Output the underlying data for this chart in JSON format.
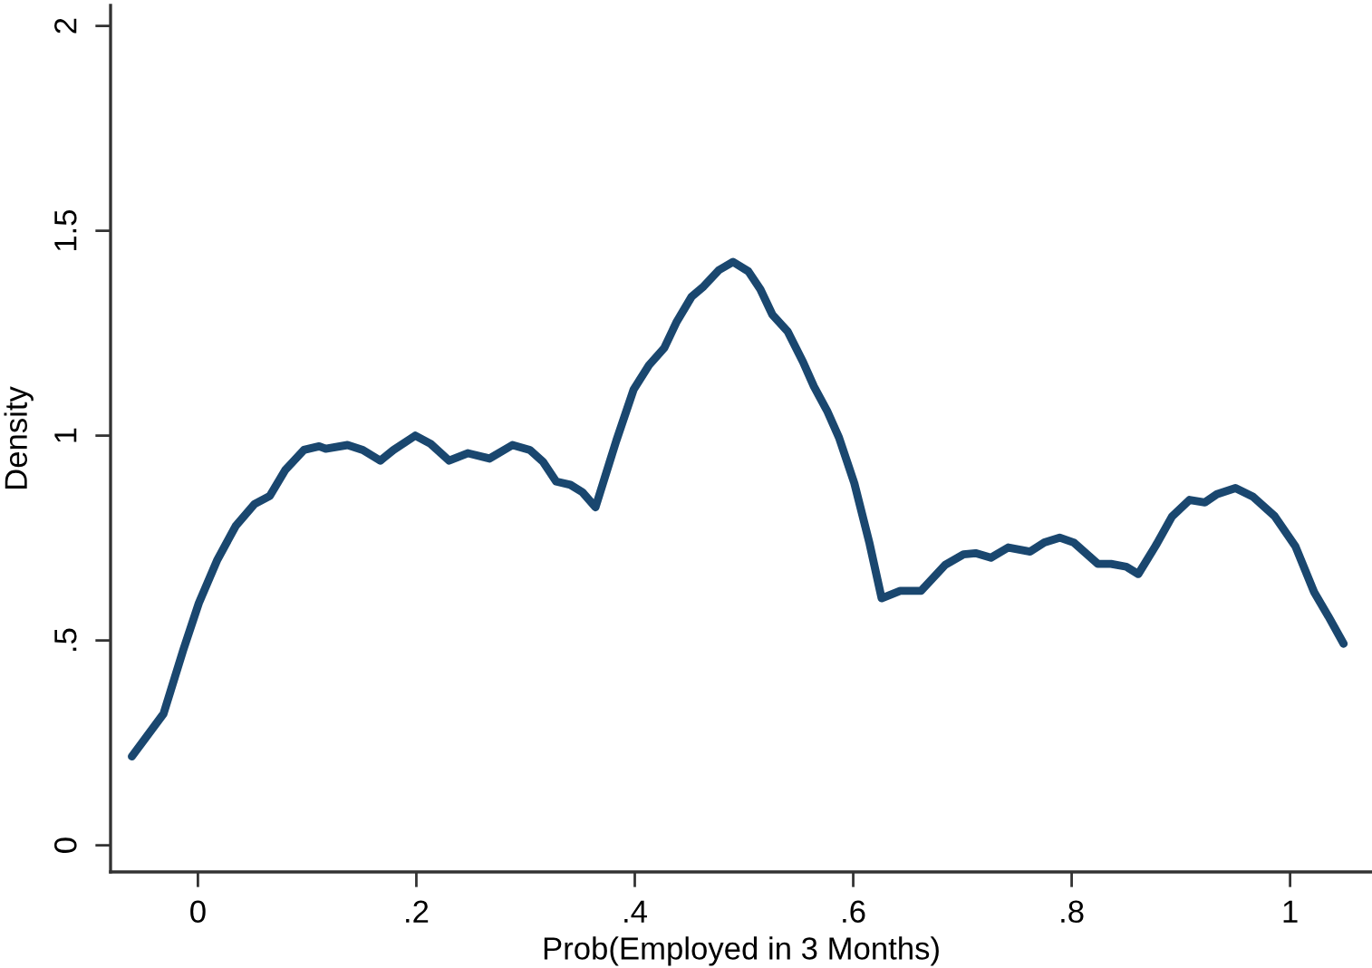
{
  "chart_data": {
    "type": "line",
    "xlabel": "Prob(Employed in 3 Months)",
    "ylabel": "Density",
    "x": [
      -0.0605,
      -0.0315,
      -0.0134,
      0.0008,
      0.0178,
      0.0347,
      0.0518,
      0.0659,
      0.08,
      0.097,
      0.111,
      0.117,
      0.137,
      0.151,
      0.167,
      0.179,
      0.199,
      0.213,
      0.23,
      0.247,
      0.267,
      0.288,
      0.304,
      0.316,
      0.328,
      0.341,
      0.352,
      0.364,
      0.383,
      0.399,
      0.413,
      0.427,
      0.438,
      0.452,
      0.463,
      0.477,
      0.49,
      0.504,
      0.515,
      0.526,
      0.54,
      0.554,
      0.564,
      0.576,
      0.587,
      0.601,
      0.615,
      0.626,
      0.643,
      0.662,
      0.684,
      0.701,
      0.712,
      0.726,
      0.742,
      0.762,
      0.775,
      0.789,
      0.802,
      0.824,
      0.836,
      0.85,
      0.861,
      0.878,
      0.892,
      0.908,
      0.922,
      0.933,
      0.95,
      0.966,
      0.986,
      1.005,
      1.022,
      1.035,
      1.049
    ],
    "series": [
      {
        "color": "#1a476f",
        "values": [
          0.217,
          0.321,
          0.477,
          0.591,
          0.697,
          0.78,
          0.833,
          0.853,
          0.916,
          0.965,
          0.974,
          0.968,
          0.977,
          0.965,
          0.939,
          0.965,
          1.0,
          0.98,
          0.939,
          0.957,
          0.944,
          0.977,
          0.965,
          0.936,
          0.888,
          0.88,
          0.862,
          0.825,
          0.987,
          1.113,
          1.172,
          1.214,
          1.276,
          1.339,
          1.364,
          1.404,
          1.424,
          1.401,
          1.357,
          1.295,
          1.254,
          1.18,
          1.12,
          1.061,
          0.995,
          0.884,
          0.736,
          0.603,
          0.621,
          0.621,
          0.684,
          0.71,
          0.713,
          0.702,
          0.727,
          0.717,
          0.739,
          0.751,
          0.739,
          0.687,
          0.687,
          0.68,
          0.662,
          0.736,
          0.803,
          0.843,
          0.837,
          0.857,
          0.872,
          0.851,
          0.803,
          0.729,
          0.618,
          0.559,
          0.492
        ]
      }
    ],
    "xlim": [
      -0.08,
      1.075
    ],
    "xticks": [
      0,
      {
        "value": 0.2,
        "label": ".2"
      },
      {
        "value": 0.4,
        "label": ".4"
      },
      {
        "value": 0.6,
        "label": ".6"
      },
      {
        "value": 0.8,
        "label": ".8"
      },
      1
    ],
    "ylim": [
      -0.065,
      2.05
    ],
    "yticks": [
      0,
      {
        "value": 0.5,
        "label": ".5"
      },
      1,
      1.5,
      2
    ],
    "line_style": "solid"
  }
}
